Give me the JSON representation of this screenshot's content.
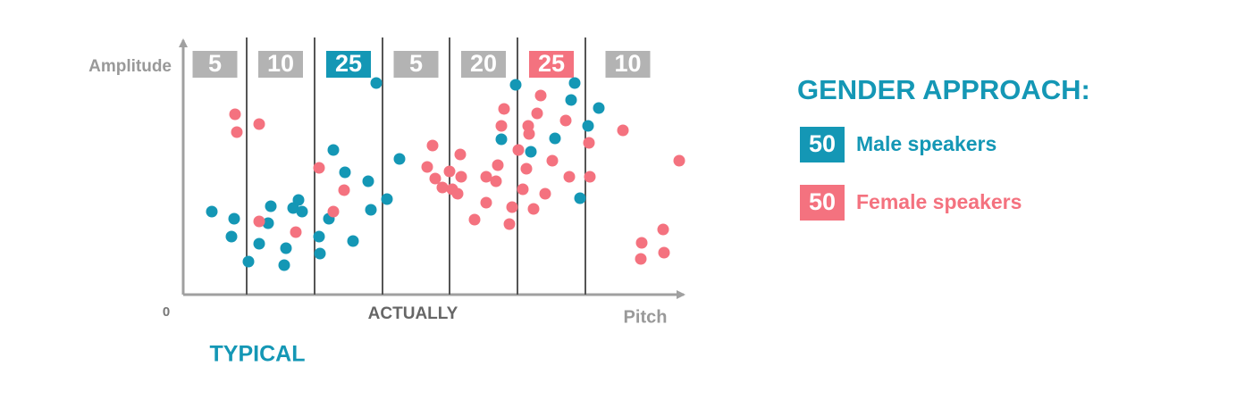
{
  "chart_data": {
    "type": "scatter",
    "y_label": "Amplitude",
    "x_label": "Pitch",
    "origin_label": "0",
    "annotations": [
      "ACTUALLY",
      "TYPICAL"
    ],
    "xlim": [
      0,
      560
    ],
    "ylim": [
      0,
      285
    ],
    "sections": {
      "edges": [
        0,
        71,
        147,
        223,
        298,
        374,
        450,
        545
      ],
      "counts": [
        5,
        10,
        25,
        5,
        20,
        25,
        10
      ],
      "colors": [
        "#b3b3b3",
        "#b3b3b3",
        "#1497b5",
        "#b3b3b3",
        "#b3b3b3",
        "#f4727f",
        "#b3b3b3"
      ]
    },
    "legend_title": "GENDER APPROACH:",
    "series": [
      {
        "name": "Male speakers",
        "count": 50,
        "color": "#1497b5",
        "x": [
          32,
          57,
          54,
          73,
          85,
          95,
          98,
          113,
          115,
          123,
          129,
          133,
          152,
          153,
          163,
          168,
          181,
          190,
          207,
          210,
          216,
          228,
          242,
          356,
          372,
          389,
          416,
          434,
          438,
          444,
          453,
          465
        ],
        "values": [
          93,
          85,
          65,
          37,
          57,
          80,
          99,
          33,
          52,
          97,
          106,
          93,
          65,
          46,
          85,
          162,
          137,
          60,
          127,
          95,
          237,
          107,
          152,
          174,
          235,
          160,
          175,
          218,
          237,
          108,
          189,
          209
        ]
      },
      {
        "name": "Female speakers",
        "count": 50,
        "color": "#f4727f",
        "x": [
          58,
          60,
          85,
          85,
          126,
          152,
          168,
          180,
          279,
          273,
          282,
          290,
          298,
          301,
          307,
          310,
          311,
          326,
          339,
          339,
          350,
          352,
          356,
          359,
          365,
          368,
          375,
          380,
          384,
          386,
          387,
          392,
          396,
          400,
          405,
          413,
          428,
          432,
          454,
          455,
          492,
          513,
          512,
          537,
          538,
          555
        ],
        "values": [
          202,
          182,
          191,
          82,
          70,
          142,
          93,
          117,
          167,
          143,
          130,
          120,
          138,
          118,
          113,
          157,
          132,
          84,
          132,
          103,
          127,
          145,
          189,
          208,
          79,
          98,
          162,
          118,
          141,
          189,
          180,
          96,
          203,
          223,
          113,
          150,
          195,
          132,
          170,
          132,
          184,
          58,
          40,
          73,
          47,
          150
        ]
      }
    ]
  }
}
